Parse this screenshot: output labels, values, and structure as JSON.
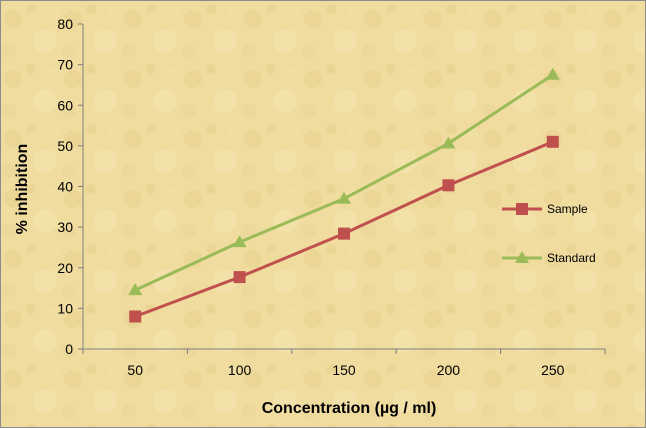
{
  "chart_data": {
    "type": "line",
    "title": "",
    "xlabel": "Concentration (µg / ml)",
    "ylabel": "% inhibition",
    "x": [
      50,
      100,
      150,
      200,
      250
    ],
    "x_tick_labels": [
      "50",
      "100",
      "150",
      "200",
      "250"
    ],
    "ylim": [
      0,
      80
    ],
    "y_ticks": [
      0,
      10,
      20,
      30,
      40,
      50,
      60,
      70,
      80
    ],
    "y_tick_labels": [
      "0",
      "10",
      "20",
      "30",
      "40",
      "50",
      "60",
      "70",
      "80"
    ],
    "grid": false,
    "legend_position": "right",
    "series": [
      {
        "name": "Sample",
        "values": [
          8.0,
          17.7,
          28.4,
          40.3,
          51.0
        ],
        "color": "#c0504d",
        "marker": "square"
      },
      {
        "name": "Standard",
        "values": [
          14.5,
          26.3,
          37.0,
          50.6,
          67.5
        ],
        "color": "#9bbb59",
        "marker": "triangle"
      }
    ],
    "background_color": "#efdc9e"
  }
}
